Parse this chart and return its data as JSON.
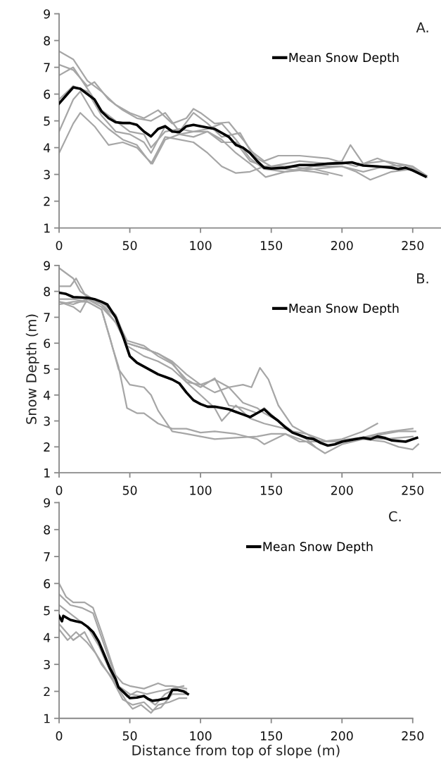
{
  "chart_data": [
    {
      "type": "line",
      "annotations": [
        "A."
      ],
      "xlim": [
        0,
        270
      ],
      "xticks": [
        0,
        50,
        100,
        150,
        200,
        250
      ],
      "ylim": [
        1,
        9
      ],
      "yticks": [
        1,
        2,
        3,
        4,
        5,
        6,
        7,
        8,
        9
      ],
      "grid": false,
      "legend": "top right",
      "marker": "none",
      "line_style": "solid",
      "series": [
        {
          "color": "#a6a6a6",
          "x": [
            0,
            10,
            20,
            30,
            40,
            50,
            60,
            70,
            80,
            90,
            95,
            100,
            110,
            120,
            130,
            140,
            150,
            170,
            190,
            200,
            206,
            215,
            230,
            250,
            260
          ],
          "values": [
            7.6,
            7.3,
            6.5,
            6.1,
            5.6,
            5.3,
            5.1,
            5.4,
            4.9,
            5.1,
            5.45,
            5.3,
            4.9,
            4.95,
            4.3,
            3.6,
            3.3,
            3.5,
            3.4,
            3.5,
            4.1,
            3.4,
            3.5,
            3.3,
            2.95
          ]
        },
        {
          "color": "#a6a6a6",
          "x": [
            0,
            10,
            20,
            25,
            35,
            45,
            55,
            65,
            75,
            85,
            95,
            105,
            115,
            128,
            135,
            145,
            155,
            170,
            190,
            210,
            225,
            240,
            258
          ],
          "values": [
            7.1,
            6.9,
            6.3,
            6.45,
            5.8,
            5.4,
            5.1,
            5.0,
            5.3,
            4.6,
            5.3,
            4.9,
            4.4,
            4.55,
            3.9,
            3.5,
            3.7,
            3.7,
            3.6,
            3.3,
            3.6,
            3.3,
            3.0
          ]
        },
        {
          "color": "#a6a6a6",
          "x": [
            0,
            10,
            20,
            30,
            40,
            50,
            60,
            65,
            75,
            85,
            95,
            105,
            115,
            125,
            135,
            145,
            160,
            180,
            200
          ],
          "values": [
            6.7,
            7.0,
            6.2,
            5.4,
            5.0,
            4.6,
            4.5,
            4.0,
            4.6,
            4.7,
            4.6,
            4.6,
            4.2,
            4.2,
            3.5,
            3.3,
            3.3,
            3.2,
            2.95
          ]
        },
        {
          "color": "#a6a6a6",
          "x": [
            0,
            10,
            20,
            30,
            40,
            50,
            60,
            65,
            75,
            85,
            95,
            105,
            115,
            125,
            135,
            146,
            160,
            180,
            200,
            210,
            220,
            235,
            250,
            260
          ],
          "values": [
            5.8,
            6.3,
            6.1,
            5.2,
            4.6,
            4.5,
            4.2,
            3.8,
            4.8,
            4.5,
            4.4,
            4.6,
            4.3,
            3.8,
            3.4,
            2.9,
            3.1,
            3.3,
            3.3,
            3.1,
            2.8,
            3.1,
            3.2,
            2.9
          ]
        },
        {
          "color": "#a6a6a6",
          "x": [
            0,
            10,
            15,
            25,
            35,
            45,
            55,
            65,
            75,
            85,
            95,
            105,
            115,
            125,
            135,
            145,
            160,
            180,
            190
          ],
          "values": [
            4.6,
            5.8,
            6.1,
            5.2,
            4.7,
            4.3,
            4.1,
            3.4,
            4.4,
            4.3,
            4.2,
            3.8,
            3.3,
            3.05,
            3.1,
            3.3,
            3.2,
            3.1,
            3.0
          ]
        },
        {
          "color": "#a6a6a6",
          "x": [
            0,
            10,
            15,
            25,
            35,
            45,
            55,
            62,
            66,
            75,
            85,
            95,
            105,
            115,
            125,
            135,
            145,
            160,
            180,
            200,
            215,
            230,
            245,
            255
          ],
          "values": [
            3.8,
            4.9,
            5.3,
            4.8,
            4.1,
            4.2,
            4.0,
            3.6,
            3.4,
            4.3,
            4.5,
            4.6,
            4.7,
            4.9,
            4.3,
            3.6,
            3.2,
            3.1,
            3.2,
            3.3,
            3.1,
            3.3,
            3.35,
            3.1
          ]
        },
        {
          "name": "Mean Snow Depth",
          "color": "#000000",
          "x": [
            0,
            5,
            10,
            15,
            20,
            25,
            30,
            35,
            40,
            45,
            50,
            55,
            60,
            65,
            70,
            75,
            80,
            85,
            90,
            95,
            100,
            110,
            120,
            125,
            130,
            135,
            140,
            145,
            150,
            160,
            170,
            180,
            190,
            200,
            207,
            215,
            225,
            235,
            240,
            245,
            250,
            259
          ],
          "values": [
            5.65,
            5.95,
            6.25,
            6.2,
            6.0,
            5.8,
            5.35,
            5.1,
            4.95,
            4.92,
            4.92,
            4.85,
            4.6,
            4.42,
            4.7,
            4.8,
            4.6,
            4.58,
            4.8,
            4.85,
            4.8,
            4.7,
            4.4,
            4.1,
            4.0,
            3.8,
            3.5,
            3.25,
            3.22,
            3.25,
            3.35,
            3.35,
            3.4,
            3.42,
            3.45,
            3.33,
            3.3,
            3.25,
            3.2,
            3.25,
            3.15,
            2.92
          ]
        }
      ]
    },
    {
      "type": "line",
      "ylabel": "Snow Depth (m)",
      "annotations": [
        "B."
      ],
      "xlim": [
        0,
        270
      ],
      "xticks": [
        0,
        50,
        100,
        150,
        200,
        250
      ],
      "ylim": [
        1,
        9
      ],
      "yticks": [
        1,
        2,
        3,
        4,
        5,
        6,
        7,
        8,
        9
      ],
      "grid": false,
      "legend": "top right",
      "marker": "none",
      "line_style": "solid",
      "series": [
        {
          "color": "#a6a6a6",
          "x": [
            0,
            10,
            15,
            20,
            30,
            40,
            48,
            60,
            70,
            80,
            90,
            100,
            110,
            120,
            130,
            136,
            142,
            148,
            155,
            165,
            175,
            185,
            200,
            215,
            225
          ],
          "values": [
            8.9,
            8.5,
            8.0,
            7.8,
            7.6,
            7.1,
            6.0,
            5.8,
            5.6,
            5.3,
            4.8,
            4.4,
            4.6,
            4.3,
            4.4,
            4.3,
            5.05,
            4.6,
            3.6,
            2.8,
            2.5,
            2.2,
            2.3,
            2.6,
            2.9
          ]
        },
        {
          "color": "#a6a6a6",
          "x": [
            0,
            8,
            12,
            18,
            30,
            40,
            48,
            60,
            70,
            80,
            90,
            100,
            110,
            120,
            130,
            140,
            145,
            155,
            165,
            175,
            181
          ],
          "values": [
            8.2,
            8.2,
            8.5,
            7.9,
            7.5,
            7.0,
            6.1,
            5.9,
            5.5,
            5.2,
            4.6,
            4.3,
            4.65,
            3.6,
            3.5,
            3.3,
            3.5,
            3.0,
            2.6,
            2.3,
            2.0
          ]
        },
        {
          "color": "#a6a6a6",
          "x": [
            0,
            10,
            15,
            20,
            30,
            40,
            48,
            60,
            70,
            80,
            90,
            100,
            110,
            115,
            125,
            135,
            145,
            160,
            175,
            190,
            205,
            220,
            240,
            252
          ],
          "values": [
            7.6,
            7.4,
            7.2,
            7.7,
            7.5,
            6.8,
            5.9,
            5.5,
            5.3,
            5.0,
            4.5,
            4.0,
            3.5,
            3.0,
            3.6,
            3.1,
            2.9,
            2.7,
            2.3,
            2.2,
            2.3,
            2.4,
            2.6,
            2.6
          ]
        },
        {
          "color": "#a6a6a6",
          "x": [
            0,
            10,
            20,
            30,
            38,
            42,
            48,
            55,
            60,
            70,
            80,
            90,
            100,
            110,
            125,
            140,
            145,
            160,
            175,
            188,
            200,
            215,
            230,
            240,
            250,
            254
          ],
          "values": [
            7.5,
            7.6,
            7.6,
            7.3,
            5.8,
            5.1,
            3.5,
            3.3,
            3.3,
            2.9,
            2.7,
            2.7,
            2.55,
            2.6,
            2.5,
            2.3,
            2.1,
            2.5,
            2.2,
            1.75,
            2.1,
            2.3,
            2.2,
            2.0,
            1.9,
            2.1
          ]
        },
        {
          "color": "#a6a6a6",
          "x": [
            0,
            10,
            20,
            30,
            36,
            42,
            50,
            60,
            65,
            70,
            75,
            80,
            90,
            100,
            110,
            125,
            140,
            150,
            160,
            170,
            180,
            200,
            215,
            230,
            250
          ],
          "values": [
            7.7,
            7.7,
            7.6,
            7.3,
            6.2,
            5.0,
            4.4,
            4.3,
            4.0,
            3.4,
            3.0,
            2.6,
            2.5,
            2.4,
            2.3,
            2.35,
            2.4,
            2.5,
            2.5,
            2.2,
            2.2,
            2.2,
            2.35,
            2.3,
            2.4
          ]
        },
        {
          "color": "#a6a6a6",
          "x": [
            0,
            10,
            20,
            30,
            40,
            48,
            60,
            70,
            80,
            90,
            100,
            110,
            120,
            130,
            140,
            145,
            155,
            165,
            175,
            190,
            210,
            225,
            235,
            250
          ],
          "values": [
            7.6,
            7.5,
            7.7,
            7.4,
            6.8,
            6.0,
            5.8,
            5.6,
            5.25,
            4.5,
            4.4,
            4.1,
            4.3,
            3.7,
            3.5,
            3.3,
            3.0,
            2.6,
            2.5,
            2.2,
            2.3,
            2.5,
            2.6,
            2.7
          ]
        },
        {
          "name": "Mean Snow Depth",
          "color": "#000000",
          "x": [
            0,
            5,
            10,
            20,
            25,
            30,
            34,
            40,
            45,
            50,
            55,
            60,
            65,
            70,
            75,
            80,
            85,
            90,
            95,
            100,
            105,
            110,
            120,
            125,
            130,
            135,
            140,
            145,
            150,
            155,
            160,
            165,
            170,
            175,
            180,
            185,
            190,
            195,
            200,
            210,
            215,
            220,
            225,
            230,
            235,
            245,
            253
          ],
          "values": [
            7.95,
            7.9,
            7.78,
            7.75,
            7.7,
            7.6,
            7.5,
            7.0,
            6.3,
            5.5,
            5.25,
            5.1,
            4.95,
            4.8,
            4.7,
            4.6,
            4.45,
            4.1,
            3.8,
            3.65,
            3.55,
            3.55,
            3.45,
            3.35,
            3.25,
            3.15,
            3.3,
            3.45,
            3.2,
            3.0,
            2.75,
            2.55,
            2.45,
            2.35,
            2.3,
            2.15,
            2.05,
            2.1,
            2.2,
            2.3,
            2.35,
            2.3,
            2.4,
            2.35,
            2.25,
            2.2,
            2.35
          ]
        }
      ]
    },
    {
      "type": "line",
      "xlabel": "Distance from top of slope (m)",
      "annotations": [
        "C."
      ],
      "xlim": [
        0,
        250
      ],
      "xticks": [
        0,
        50,
        100,
        150,
        200,
        250
      ],
      "ylim": [
        1,
        9
      ],
      "yticks": [
        1,
        2,
        3,
        4,
        5,
        6,
        7,
        8,
        9
      ],
      "grid": false,
      "legend": "top right",
      "marker": "none",
      "line_style": "solid",
      "series": [
        {
          "color": "#a6a6a6",
          "x": [
            0,
            5,
            10,
            18,
            24,
            30,
            35,
            40,
            45,
            50,
            60,
            70,
            75,
            80,
            90
          ],
          "values": [
            6.0,
            5.5,
            5.3,
            5.3,
            5.1,
            4.2,
            3.4,
            2.6,
            2.3,
            2.2,
            2.1,
            2.3,
            2.2,
            2.2,
            2.1
          ]
        },
        {
          "color": "#a6a6a6",
          "x": [
            0,
            8,
            16,
            24,
            30,
            36,
            42,
            50,
            60,
            68,
            75,
            82,
            90
          ],
          "values": [
            5.6,
            5.2,
            5.1,
            4.9,
            4.0,
            3.1,
            2.2,
            1.9,
            1.8,
            1.5,
            1.9,
            2.1,
            2.0
          ]
        },
        {
          "color": "#a6a6a6",
          "x": [
            0,
            5,
            10,
            18,
            24,
            30,
            36,
            42,
            48,
            52,
            58,
            65,
            70,
            78,
            85,
            90
          ],
          "values": [
            4.5,
            4.2,
            3.9,
            4.2,
            3.6,
            3.0,
            2.6,
            2.1,
            1.6,
            1.35,
            1.5,
            1.2,
            1.5,
            1.6,
            1.75,
            1.75
          ]
        },
        {
          "color": "#a6a6a6",
          "x": [
            0,
            6,
            12,
            20,
            26,
            32,
            38,
            45,
            52,
            60,
            66,
            72,
            80,
            90
          ],
          "values": [
            4.3,
            3.9,
            4.2,
            3.8,
            3.4,
            2.9,
            2.4,
            1.7,
            1.5,
            1.6,
            1.3,
            1.4,
            1.9,
            1.9
          ]
        },
        {
          "color": "#a6a6a6",
          "x": [
            0,
            10,
            20,
            28,
            34,
            40,
            48,
            55,
            62,
            70,
            80,
            88
          ],
          "values": [
            5.2,
            4.8,
            4.4,
            3.7,
            3.0,
            2.3,
            1.8,
            2.0,
            1.9,
            2.0,
            2.1,
            2.2
          ]
        },
        {
          "name": "Mean Snow Depth",
          "color": "#000000",
          "x": [
            0,
            2,
            3,
            8,
            12,
            16,
            20,
            24,
            28,
            32,
            36,
            40,
            42,
            46,
            50,
            55,
            60,
            63,
            66,
            70,
            74,
            77,
            80,
            84,
            88,
            91
          ],
          "values": [
            4.8,
            4.6,
            4.8,
            4.65,
            4.6,
            4.55,
            4.4,
            4.2,
            3.85,
            3.35,
            2.85,
            2.45,
            2.15,
            1.95,
            1.75,
            1.77,
            1.83,
            1.72,
            1.65,
            1.68,
            1.72,
            1.75,
            2.05,
            2.05,
            2.0,
            1.9
          ]
        }
      ]
    }
  ]
}
